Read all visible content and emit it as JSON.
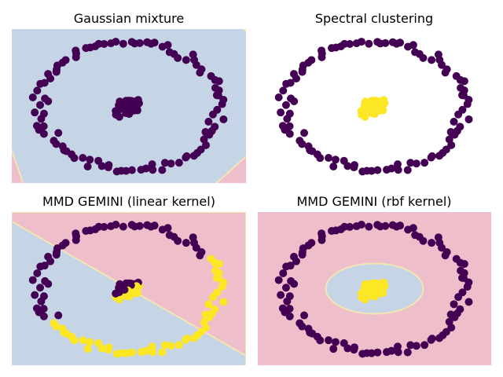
{
  "figure": {
    "colors": {
      "cluster_dark": "#440154",
      "cluster_yellow": "#fde725",
      "region_blue": "#c5d5e6",
      "region_pink": "#eebfca",
      "region_edge": "#f3e5b3"
    }
  },
  "chart_data": [
    {
      "type": "scatter",
      "title": "Gaussian mixture",
      "background": "gaussian-ellipse",
      "ring_label": "dark",
      "core_label": "dark",
      "xlim": [
        -1.3,
        1.3
      ],
      "ylim": [
        -1.2,
        1.2
      ]
    },
    {
      "type": "scatter",
      "title": "Spectral clustering",
      "background": "none",
      "ring_label": "dark",
      "core_label": "yellow",
      "xlim": [
        -1.3,
        1.3
      ],
      "ylim": [
        -1.2,
        1.2
      ]
    },
    {
      "type": "scatter",
      "title": "MMD GEMINI (linear kernel)",
      "background": "linear-split",
      "ring_label": "split",
      "core_label": "split",
      "xlim": [
        -1.3,
        1.3
      ],
      "ylim": [
        -1.2,
        1.2
      ]
    },
    {
      "type": "scatter",
      "title": "MMD GEMINI (rbf kernel)",
      "background": "rbf-blob",
      "ring_label": "dark",
      "core_label": "yellow",
      "xlim": [
        -1.3,
        1.3
      ],
      "ylim": [
        -1.2,
        1.2
      ]
    }
  ]
}
